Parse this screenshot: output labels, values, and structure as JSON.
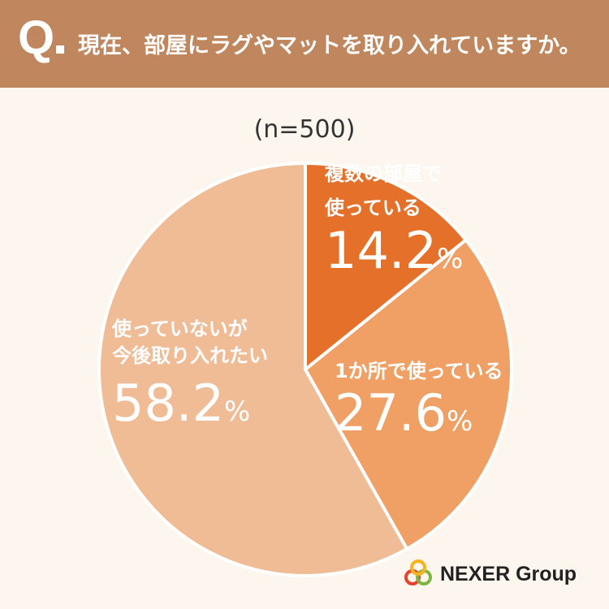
{
  "header": {
    "q_label": "Q",
    "question": "現在、部屋にラグやマットを取り入れていますか。"
  },
  "sample_size": "(n=500)",
  "chart_data": {
    "type": "pie",
    "title": "",
    "slices": [
      {
        "label_line1": "複数の部屋で",
        "label_line2": "使っている",
        "value": 14.2,
        "value_text": "14.2",
        "unit": "%",
        "color": "#e5702a",
        "label_color": "#ffffff"
      },
      {
        "label_line1": "1か所で使っている",
        "label_line2": "",
        "value": 27.6,
        "value_text": "27.6",
        "unit": "%",
        "color": "#f0a064",
        "label_color": "#ffffff"
      },
      {
        "label_line1": "使っていないが",
        "label_line2": "今後取り入れたい",
        "value": 58.2,
        "value_text": "58.2",
        "unit": "%",
        "color": "#f0bc96",
        "label_color": "#ffffff"
      }
    ]
  },
  "logo": {
    "text": "NEXER Group",
    "colors": [
      "#e8412c",
      "#7cb742",
      "#f6b31c"
    ]
  }
}
